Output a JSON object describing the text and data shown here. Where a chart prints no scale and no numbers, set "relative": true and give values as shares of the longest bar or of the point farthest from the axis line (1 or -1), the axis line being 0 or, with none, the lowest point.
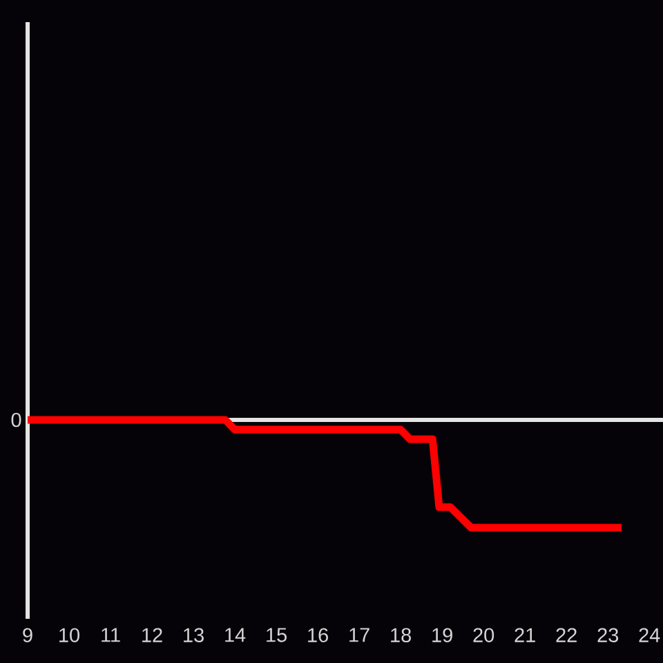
{
  "chart_data": {
    "type": "line",
    "relative": true,
    "x": [
      9,
      13.77,
      14,
      18,
      18.23,
      18.77,
      18.93,
      19.2,
      19.7,
      23.33
    ],
    "values": [
      0,
      0,
      -0.09,
      -0.09,
      -0.18,
      -0.18,
      -0.81,
      -0.81,
      -1,
      -1
    ],
    "color": "#ff0000",
    "xlim": [
      9,
      24.33
    ],
    "xticks": [
      9,
      10,
      11,
      12,
      13,
      14,
      15,
      16,
      17,
      18,
      19,
      20,
      21,
      22,
      23,
      24
    ],
    "ref_lines": [
      {
        "axis": "y",
        "value": 0,
        "label": "0",
        "color": "#e4e4e4"
      }
    ]
  }
}
